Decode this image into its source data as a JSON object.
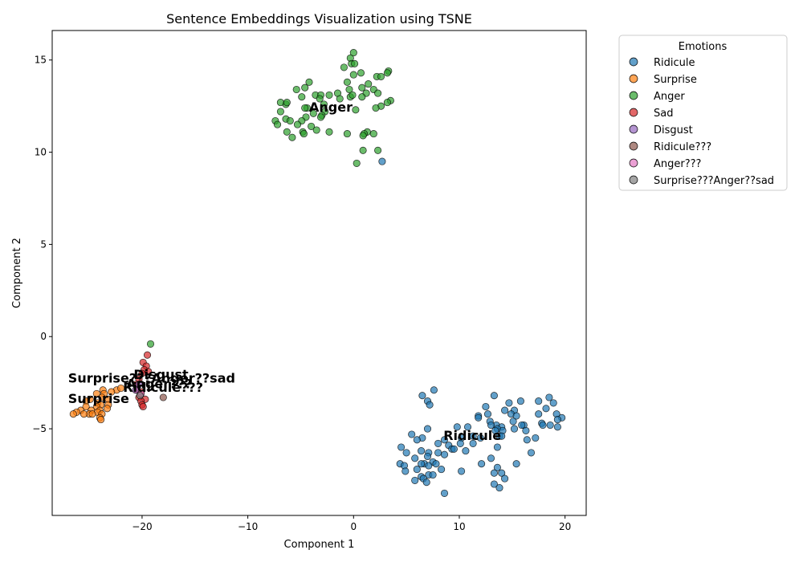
{
  "chart_data": {
    "type": "scatter",
    "title": "Sentence Embeddings Visualization using TSNE",
    "xlabel": "Component 1",
    "ylabel": "Component 2",
    "xlim": [
      -28.5,
      22
    ],
    "ylim": [
      -9.7,
      16.6
    ],
    "xticks": [
      -20,
      -10,
      0,
      10,
      20
    ],
    "yticks": [
      -5,
      0,
      5,
      10,
      15
    ],
    "xtick_labels": [
      "−20",
      "−10",
      "0",
      "10",
      "20"
    ],
    "ytick_labels": [
      "−5",
      "0",
      "5",
      "10",
      "15"
    ],
    "grid": false,
    "legend": {
      "title": "Emotions",
      "placement": "outside-right-top"
    },
    "series": [
      {
        "name": "Ridicule",
        "color": "#1f77b4",
        "points": [
          [
            7.6,
            -2.9
          ],
          [
            6.5,
            -3.2
          ],
          [
            7.0,
            -3.5
          ],
          [
            7.2,
            -3.7
          ],
          [
            13.3,
            -3.2
          ],
          [
            18.5,
            -3.3
          ],
          [
            18.9,
            -3.6
          ],
          [
            15.8,
            -3.5
          ],
          [
            17.5,
            -3.5
          ],
          [
            14.7,
            -3.6
          ],
          [
            12.5,
            -3.8
          ],
          [
            14.3,
            -4.0
          ],
          [
            18.2,
            -3.9
          ],
          [
            15.2,
            -4.0
          ],
          [
            14.9,
            -4.2
          ],
          [
            12.7,
            -4.2
          ],
          [
            11.8,
            -4.3
          ],
          [
            17.5,
            -4.2
          ],
          [
            15.4,
            -4.3
          ],
          [
            19.2,
            -4.2
          ],
          [
            19.7,
            -4.4
          ],
          [
            11.8,
            -4.4
          ],
          [
            12.9,
            -4.6
          ],
          [
            15.1,
            -4.6
          ],
          [
            17.8,
            -4.7
          ],
          [
            18.6,
            -4.8
          ],
          [
            19.3,
            -4.5
          ],
          [
            13.5,
            -4.8
          ],
          [
            13.0,
            -4.8
          ],
          [
            16.1,
            -4.8
          ],
          [
            17.9,
            -4.8
          ],
          [
            15.9,
            -4.8
          ],
          [
            14.0,
            -4.9
          ],
          [
            9.8,
            -4.9
          ],
          [
            10.8,
            -4.9
          ],
          [
            13.6,
            -5.0
          ],
          [
            15.2,
            -5.0
          ],
          [
            16.3,
            -5.1
          ],
          [
            19.3,
            -4.9
          ],
          [
            7.0,
            -5.0
          ],
          [
            14.1,
            -5.1
          ],
          [
            13.4,
            -5.1
          ],
          [
            5.5,
            -5.3
          ],
          [
            11.3,
            -5.4
          ],
          [
            13.8,
            -5.4
          ],
          [
            14.0,
            -5.4
          ],
          [
            10.2,
            -5.5
          ],
          [
            17.2,
            -5.5
          ],
          [
            12.0,
            -5.5
          ],
          [
            6.5,
            -5.5
          ],
          [
            6.0,
            -5.6
          ],
          [
            16.4,
            -5.6
          ],
          [
            8.6,
            -5.6
          ],
          [
            10.1,
            -5.8
          ],
          [
            11.3,
            -5.8
          ],
          [
            8.0,
            -5.8
          ],
          [
            9.0,
            -5.9
          ],
          [
            4.5,
            -6.0
          ],
          [
            13.6,
            -6.0
          ],
          [
            9.3,
            -6.1
          ],
          [
            9.5,
            -6.1
          ],
          [
            5.0,
            -6.3
          ],
          [
            6.4,
            -6.2
          ],
          [
            7.1,
            -6.3
          ],
          [
            8.0,
            -6.3
          ],
          [
            10.6,
            -6.2
          ],
          [
            16.8,
            -6.3
          ],
          [
            8.6,
            -6.4
          ],
          [
            7.0,
            -6.5
          ],
          [
            5.8,
            -6.6
          ],
          [
            13.0,
            -6.6
          ],
          [
            7.5,
            -6.8
          ],
          [
            6.7,
            -6.9
          ],
          [
            6.4,
            -6.9
          ],
          [
            4.4,
            -6.9
          ],
          [
            12.1,
            -6.9
          ],
          [
            15.4,
            -6.9
          ],
          [
            7.8,
            -6.9
          ],
          [
            4.8,
            -7.0
          ],
          [
            7.1,
            -7.0
          ],
          [
            13.6,
            -7.1
          ],
          [
            6.0,
            -7.2
          ],
          [
            8.3,
            -7.2
          ],
          [
            10.2,
            -7.3
          ],
          [
            4.9,
            -7.3
          ],
          [
            13.3,
            -7.4
          ],
          [
            14.0,
            -7.4
          ],
          [
            6.4,
            -7.6
          ],
          [
            7.1,
            -7.5
          ],
          [
            7.5,
            -7.5
          ],
          [
            6.6,
            -7.7
          ],
          [
            5.8,
            -7.8
          ],
          [
            14.3,
            -7.7
          ],
          [
            6.9,
            -7.9
          ],
          [
            13.3,
            -8.0
          ],
          [
            13.8,
            -8.2
          ],
          [
            8.6,
            -8.5
          ],
          [
            2.7,
            9.5
          ]
        ]
      },
      {
        "name": "Surprise",
        "color": "#ff7f0e",
        "points": [
          [
            -23.7,
            -2.9
          ],
          [
            -22.4,
            -2.9
          ],
          [
            -22.0,
            -2.8
          ],
          [
            -23.6,
            -3.1
          ],
          [
            -22.9,
            -3.0
          ],
          [
            -24.3,
            -3.1
          ],
          [
            -24.9,
            -3.4
          ],
          [
            -23.8,
            -3.3
          ],
          [
            -23.2,
            -3.4
          ],
          [
            -25.3,
            -3.5
          ],
          [
            -24.2,
            -3.6
          ],
          [
            -23.9,
            -3.7
          ],
          [
            -23.2,
            -3.7
          ],
          [
            -25.3,
            -3.8
          ],
          [
            -24.3,
            -3.8
          ],
          [
            -23.3,
            -3.9
          ],
          [
            -24.8,
            -4.0
          ],
          [
            -24.0,
            -4.0
          ],
          [
            -25.8,
            -4.0
          ],
          [
            -26.2,
            -4.1
          ],
          [
            -25.0,
            -4.2
          ],
          [
            -24.2,
            -4.1
          ],
          [
            -24.7,
            -4.2
          ],
          [
            -26.5,
            -4.2
          ],
          [
            -25.5,
            -4.2
          ],
          [
            -23.8,
            -4.2
          ],
          [
            -24.0,
            -4.4
          ],
          [
            -23.9,
            -4.5
          ]
        ]
      },
      {
        "name": "Anger",
        "color": "#2ca02c",
        "points": [
          [
            0.0,
            15.4
          ],
          [
            -0.3,
            15.1
          ],
          [
            -0.2,
            14.8
          ],
          [
            0.1,
            14.8
          ],
          [
            -0.9,
            14.6
          ],
          [
            3.3,
            14.4
          ],
          [
            3.2,
            14.3
          ],
          [
            0.7,
            14.3
          ],
          [
            0.0,
            14.2
          ],
          [
            2.2,
            14.1
          ],
          [
            2.6,
            14.1
          ],
          [
            -4.2,
            13.8
          ],
          [
            -0.6,
            13.8
          ],
          [
            1.4,
            13.7
          ],
          [
            -4.6,
            13.5
          ],
          [
            0.8,
            13.5
          ],
          [
            -0.4,
            13.4
          ],
          [
            1.9,
            13.4
          ],
          [
            -5.4,
            13.4
          ],
          [
            2.3,
            13.2
          ],
          [
            1.2,
            13.2
          ],
          [
            -1.5,
            13.2
          ],
          [
            -4.9,
            13.0
          ],
          [
            -3.6,
            13.1
          ],
          [
            -3.1,
            13.1
          ],
          [
            -2.3,
            13.1
          ],
          [
            -0.3,
            13.0
          ],
          [
            -1.3,
            12.9
          ],
          [
            -0.1,
            13.1
          ],
          [
            0.8,
            13.0
          ],
          [
            -3.2,
            12.9
          ],
          [
            -6.4,
            12.6
          ],
          [
            3.5,
            12.8
          ],
          [
            3.2,
            12.7
          ],
          [
            -6.9,
            12.7
          ],
          [
            -6.3,
            12.7
          ],
          [
            -2.8,
            12.6
          ],
          [
            -4.4,
            12.4
          ],
          [
            2.6,
            12.5
          ],
          [
            2.1,
            12.4
          ],
          [
            -4.6,
            12.4
          ],
          [
            0.2,
            12.3
          ],
          [
            -6.9,
            12.2
          ],
          [
            -2.7,
            12.2
          ],
          [
            -3.8,
            12.1
          ],
          [
            -3.0,
            12.0
          ],
          [
            -4.5,
            11.9
          ],
          [
            -3.1,
            11.9
          ],
          [
            -6.4,
            11.8
          ],
          [
            -7.4,
            11.7
          ],
          [
            -6.0,
            11.7
          ],
          [
            -4.9,
            11.7
          ],
          [
            -5.3,
            11.5
          ],
          [
            -7.2,
            11.5
          ],
          [
            -4.0,
            11.4
          ],
          [
            -3.5,
            11.2
          ],
          [
            -4.8,
            11.1
          ],
          [
            -6.3,
            11.1
          ],
          [
            -2.3,
            11.1
          ],
          [
            1.3,
            11.1
          ],
          [
            1.9,
            11.0
          ],
          [
            1.0,
            11.0
          ],
          [
            -0.6,
            11.0
          ],
          [
            -5.8,
            10.8
          ],
          [
            -4.7,
            11.0
          ],
          [
            0.9,
            10.9
          ],
          [
            0.9,
            10.1
          ],
          [
            2.3,
            10.1
          ],
          [
            0.3,
            9.4
          ],
          [
            -19.2,
            -0.4
          ]
        ]
      },
      {
        "name": "Sad",
        "color": "#d62728",
        "points": [
          [
            -19.5,
            -1.0
          ],
          [
            -19.9,
            -1.4
          ],
          [
            -19.6,
            -1.6
          ],
          [
            -19.8,
            -1.8
          ],
          [
            -20.0,
            -2.0
          ],
          [
            -19.4,
            -1.9
          ],
          [
            -20.3,
            -2.3
          ],
          [
            -20.6,
            -2.6
          ],
          [
            -20.5,
            -2.9
          ],
          [
            -20.1,
            -3.0
          ],
          [
            -20.3,
            -3.3
          ],
          [
            -19.7,
            -3.4
          ],
          [
            -20.1,
            -3.5
          ],
          [
            -20.0,
            -3.7
          ],
          [
            -19.9,
            -3.8
          ]
        ]
      },
      {
        "name": "Disgust",
        "color": "#9467bd",
        "points": [
          [
            -20.3,
            -2.6
          ],
          [
            -20.6,
            -2.9
          ]
        ]
      },
      {
        "name": "Ridicule???",
        "color": "#8c564b",
        "points": [
          [
            -18.0,
            -3.3
          ]
        ]
      },
      {
        "name": "Anger???",
        "color": "#e377c2",
        "points": [
          [
            -20.1,
            -3.1
          ]
        ]
      },
      {
        "name": "Surprise???Anger??sad",
        "color": "#7f7f7f",
        "points": [
          [
            -20.2,
            -3.2
          ]
        ]
      }
    ],
    "annotations": [
      {
        "text": "Anger",
        "x": -4.2,
        "y": 12.2
      },
      {
        "text": "Ridicule",
        "x": 8.5,
        "y": -5.6
      },
      {
        "text": "Surprise",
        "x": -27.0,
        "y": -3.6
      },
      {
        "text": "Disgust",
        "x": -20.8,
        "y": -2.3
      },
      {
        "text": "Surprise???Anger??sad",
        "x": -27.0,
        "y": -2.5
      },
      {
        "text": "Anger???",
        "x": -21.5,
        "y": -2.8
      },
      {
        "text": "Ridicule???",
        "x": -21.8,
        "y": -3.0
      }
    ]
  }
}
